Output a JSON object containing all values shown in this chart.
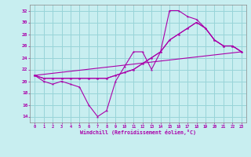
{
  "xlabel": "Windchill (Refroidissement éolien,°C)",
  "bg_color": "#c8eef0",
  "grid_color": "#98d4d8",
  "line_color": "#aa00aa",
  "axis_color": "#888888",
  "xlim": [
    -0.5,
    23.5
  ],
  "ylim": [
    13,
    33
  ],
  "yticks": [
    14,
    16,
    18,
    20,
    22,
    24,
    26,
    28,
    30,
    32
  ],
  "xticks": [
    0,
    1,
    2,
    3,
    4,
    5,
    6,
    7,
    8,
    9,
    10,
    11,
    12,
    13,
    14,
    15,
    16,
    17,
    18,
    19,
    20,
    21,
    22,
    23
  ],
  "line1_x": [
    0,
    1,
    2,
    3,
    4,
    5,
    6,
    7,
    8,
    9,
    10,
    11,
    12,
    13,
    14,
    15,
    16,
    17,
    18,
    19,
    20,
    21,
    22,
    23
  ],
  "line1_y": [
    21,
    20,
    19.5,
    20,
    19.5,
    19,
    16,
    14,
    15,
    20,
    22.5,
    25,
    25,
    22,
    25,
    32,
    32,
    31,
    30.5,
    29,
    27,
    26,
    26,
    25
  ],
  "line2_x": [
    0,
    1,
    2,
    3,
    4,
    5,
    6,
    7,
    8,
    9,
    10,
    11,
    12,
    13,
    14,
    15,
    16,
    17,
    18,
    19,
    20,
    21,
    22,
    23
  ],
  "line2_y": [
    21,
    20.5,
    20.5,
    20.5,
    20.5,
    20.5,
    20.5,
    20.5,
    20.5,
    21,
    21.5,
    22,
    23,
    24,
    25,
    27,
    28,
    29,
    30,
    29,
    27,
    26,
    26,
    25
  ],
  "line3_x": [
    0,
    23
  ],
  "line3_y": [
    21,
    25
  ],
  "line4_x": [
    0,
    1,
    2,
    3,
    4,
    5,
    6,
    7,
    8,
    9,
    10,
    11,
    12,
    13,
    14,
    15,
    16,
    17,
    18,
    19,
    20,
    21,
    22,
    23
  ],
  "line4_y": [
    21,
    20.5,
    20.5,
    20.5,
    20.5,
    20.5,
    20.5,
    20.5,
    20.5,
    21,
    21.5,
    22,
    23,
    24,
    25,
    27,
    28,
    29,
    30,
    29,
    27,
    26,
    26,
    25
  ]
}
